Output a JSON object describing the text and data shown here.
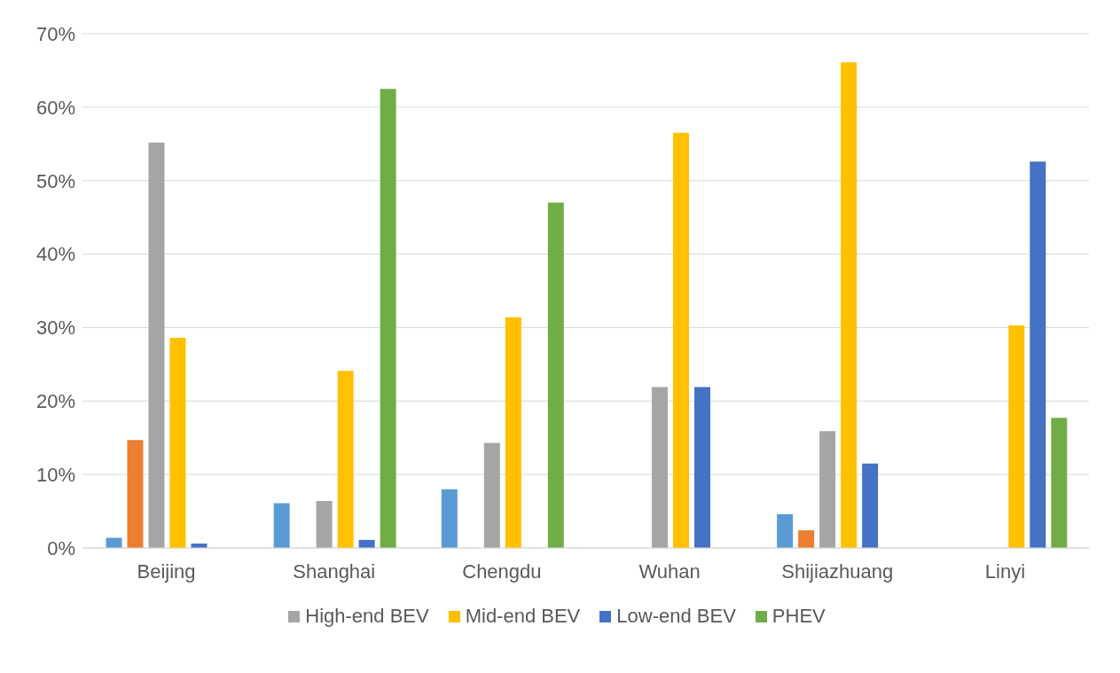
{
  "chart_data": {
    "type": "bar",
    "categories": [
      "Beijing",
      "Shanghai",
      "Chengdu",
      "Wuhan",
      "Shijiazhuang",
      "Linyi"
    ],
    "series": [
      {
        "color": "#5b9bd5",
        "values": [
          1.4,
          6.1,
          8.0,
          0,
          4.6,
          0
        ]
      },
      {
        "color": "#ed7d31",
        "values": [
          14.7,
          0,
          0,
          0,
          2.4,
          0
        ]
      },
      {
        "name": "High-end BEV",
        "color": "#a5a5a5",
        "values": [
          55.2,
          6.4,
          14.3,
          21.9,
          15.9,
          0
        ]
      },
      {
        "name": "Mid-end BEV",
        "color": "#ffc000",
        "values": [
          28.6,
          24.1,
          31.4,
          56.5,
          66.1,
          30.3
        ]
      },
      {
        "name": "Low-end BEV",
        "color": "#4472c4",
        "values": [
          0.6,
          1.1,
          0,
          21.9,
          11.5,
          52.6
        ]
      },
      {
        "name": "PHEV",
        "color": "#70ad47",
        "values": [
          0,
          62.5,
          47.0,
          0,
          0,
          17.7
        ]
      }
    ],
    "ylim": [
      0,
      70
    ],
    "yticks": [
      {
        "value": 0,
        "label": "0%"
      },
      {
        "value": 10,
        "label": "10%"
      },
      {
        "value": 20,
        "label": "20%"
      },
      {
        "value": 30,
        "label": "30%"
      },
      {
        "value": 40,
        "label": "40%"
      },
      {
        "value": 50,
        "label": "50%"
      },
      {
        "value": 60,
        "label": "60%"
      },
      {
        "value": 70,
        "label": "70%"
      }
    ],
    "grid": "y",
    "legend": "bottom"
  }
}
